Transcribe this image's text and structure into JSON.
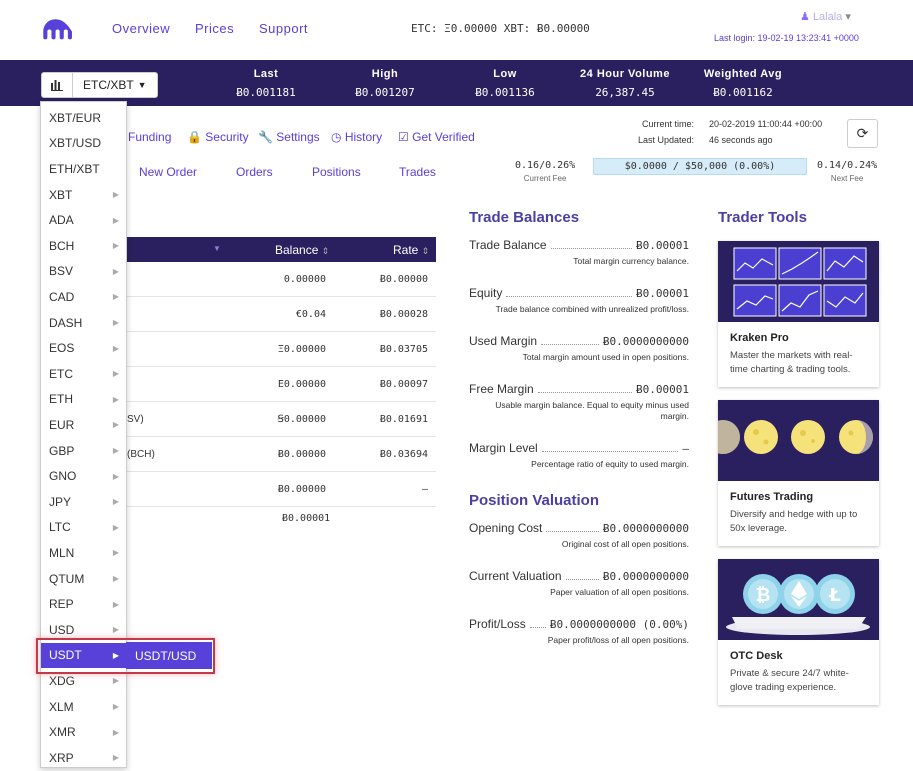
{
  "nav": {
    "links": [
      "Overview",
      "Prices",
      "Support"
    ],
    "balances_text": "ETC: Ξ0.00000  XBT: Ƀ0.00000",
    "username": "Lalala",
    "last_login": "Last login: 19-02-19 13:23:41 +0000"
  },
  "ticker": {
    "pair": "ETC/XBT",
    "columns": [
      {
        "label": "Last",
        "value": "Ƀ0.001181"
      },
      {
        "label": "High",
        "value": "Ƀ0.001207"
      },
      {
        "label": "Low",
        "value": "Ƀ0.001136"
      },
      {
        "label": "24 Hour Volume",
        "value": "26,387.45"
      },
      {
        "label": "Weighted Avg",
        "value": "Ƀ0.001162"
      }
    ]
  },
  "subnav": {
    "items": [
      "Funding",
      "Security",
      "Settings",
      "History",
      "Get Verified"
    ],
    "current_time_label": "Current time:",
    "current_time": "20-02-2019 11:00:44 +00:00",
    "last_updated_label": "Last Updated:",
    "last_updated": "46 seconds ago"
  },
  "tabs": [
    "New Order",
    "Orders",
    "Positions",
    "Trades"
  ],
  "fees": {
    "current": "0.16/0.26%",
    "current_label": "Current Fee",
    "progress": "$0.0000 / $50,000 (0.00%)",
    "next": "0.14/0.24%",
    "next_label": "Next Fee"
  },
  "balances": {
    "headers": {
      "balance": "Balance",
      "rate": "Rate"
    },
    "rows": [
      {
        "name": "",
        "balance": "0.00000",
        "rate": "Ƀ0.00000"
      },
      {
        "name": "",
        "balance": "€0.04",
        "rate": "Ƀ0.00028"
      },
      {
        "name": "",
        "balance": "Ξ0.00000",
        "rate": "Ƀ0.03705"
      },
      {
        "name": "",
        "balance": "Ε0.00000",
        "rate": "Ƀ0.00097"
      },
      {
        "name": "SV)",
        "balance": "Ꞩ0.00000",
        "rate": "Ƀ0.01691"
      },
      {
        "name": "(BCH)",
        "balance": "Ƀ0.00000",
        "rate": "Ƀ0.03694"
      },
      {
        "name": "",
        "balance": "Ƀ0.00000",
        "rate": "—"
      }
    ],
    "total": "Ƀ0.00001"
  },
  "trade_balances": {
    "title": "Trade Balances",
    "items": [
      {
        "label": "Trade Balance",
        "value": "Ƀ0.00001",
        "desc": "Total margin currency balance."
      },
      {
        "label": "Equity",
        "value": "Ƀ0.00001",
        "desc": "Trade balance combined with unrealized profit/loss."
      },
      {
        "label": "Used Margin",
        "value": "Ƀ0.0000000000",
        "desc": "Total margin amount used in open positions."
      },
      {
        "label": "Free Margin",
        "value": "Ƀ0.00001",
        "desc": "Usable margin balance. Equal to equity minus used margin."
      },
      {
        "label": "Margin Level",
        "value": "—",
        "desc": "Percentage ratio of equity to used margin."
      }
    ]
  },
  "position_valuation": {
    "title": "Position Valuation",
    "items": [
      {
        "label": "Opening Cost",
        "value": "Ƀ0.0000000000",
        "desc": "Original cost of all open positions."
      },
      {
        "label": "Current Valuation",
        "value": "Ƀ0.0000000000",
        "desc": "Paper valuation of all open positions."
      },
      {
        "label": "Profit/Loss",
        "value": "Ƀ0.0000000000 (0.00%)",
        "desc": "Paper profit/loss of all open positions."
      }
    ]
  },
  "trader_tools": {
    "title": "Trader Tools",
    "cards": [
      {
        "title": "Kraken Pro",
        "desc": "Master the markets with real-time charting & trading tools."
      },
      {
        "title": "Futures Trading",
        "desc": "Diversify and hedge with up to 50x leverage."
      },
      {
        "title": "OTC Desk",
        "desc": "Private & secure 24/7 white-glove trading experience."
      }
    ]
  },
  "dropdown": {
    "items": [
      "XBT/EUR",
      "XBT/USD",
      "ETH/XBT",
      "XBT",
      "ADA",
      "BCH",
      "BSV",
      "CAD",
      "DASH",
      "EOS",
      "ETC",
      "ETH",
      "EUR",
      "GBP",
      "GNO",
      "JPY",
      "LTC",
      "MLN",
      "QTUM",
      "REP",
      "USD",
      "USDT",
      "XDG",
      "XLM",
      "XMR",
      "XRP"
    ],
    "active": "USDT",
    "submenu_item": "USDT/USD"
  },
  "colors": {
    "brand": "#5741d9",
    "dark": "#2a2060"
  }
}
